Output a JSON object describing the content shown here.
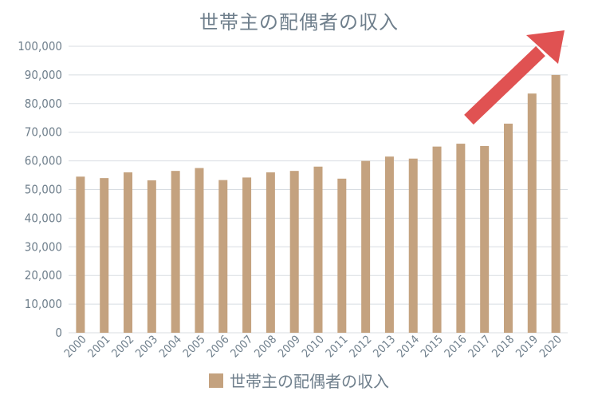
{
  "chart_data": {
    "type": "bar",
    "title": "世帯主の配偶者の収入",
    "categories": [
      "2000",
      "2001",
      "2002",
      "2003",
      "2004",
      "2005",
      "2006",
      "2007",
      "2008",
      "2009",
      "2010",
      "2011",
      "2012",
      "2013",
      "2014",
      "2015",
      "2016",
      "2017",
      "2018",
      "2019",
      "2020"
    ],
    "series": [
      {
        "name": "世帯主の配偶者の収入",
        "color": "#c4a27f",
        "values": [
          54500,
          54000,
          56000,
          53200,
          56500,
          57500,
          53300,
          54200,
          56000,
          56500,
          58000,
          53800,
          60000,
          61500,
          60800,
          65000,
          66000,
          65200,
          73000,
          83500,
          90000
        ]
      }
    ],
    "ylim": [
      0,
      100000
    ],
    "yticks": [
      "0",
      "10,000",
      "20,000",
      "30,000",
      "40,000",
      "50,000",
      "60,000",
      "70,000",
      "80,000",
      "90,000",
      "100,000"
    ],
    "ytick_values": [
      0,
      10000,
      20000,
      30000,
      40000,
      50000,
      60000,
      70000,
      80000,
      90000,
      100000
    ],
    "xlabel": "",
    "ylabel": "",
    "grid": true,
    "legend_position": "bottom",
    "annotation": {
      "type": "arrow",
      "color": "#e05252",
      "direction": "up-right"
    }
  },
  "colors": {
    "title_text": "#6f7f8c",
    "tick_text": "#6f7f8c",
    "gridline": "#d8dde2"
  }
}
